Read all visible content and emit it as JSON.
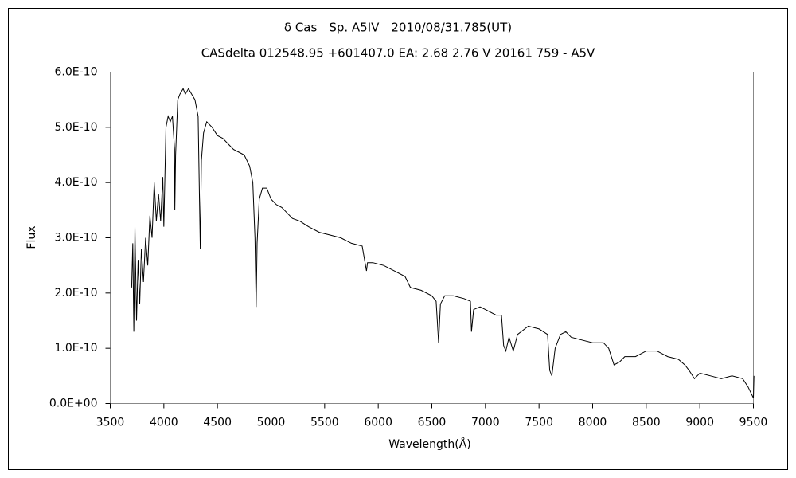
{
  "chart_data": {
    "type": "line",
    "title": "δ Cas　Sp. A5IV　2010/08/31.785(UT)",
    "subtitle": "CASdelta 012548.95 +601407.0 EA: 2.68 2.76 V 20161 759 - A5V",
    "xlabel": "Wavelength(Å)",
    "ylabel": "Flux",
    "xlim": [
      3500,
      9500
    ],
    "ylim": [
      0,
      6e-10
    ],
    "xticks": [
      3500,
      4000,
      4500,
      5000,
      5500,
      6000,
      6500,
      7000,
      7500,
      8000,
      8500,
      9000,
      9500
    ],
    "yticks": [
      {
        "value": 0,
        "label": "0.0E+00"
      },
      {
        "value": 1e-10,
        "label": "1.0E-10"
      },
      {
        "value": 2e-10,
        "label": "2.0E-10"
      },
      {
        "value": 3e-10,
        "label": "3.0E-10"
      },
      {
        "value": 4e-10,
        "label": "4.0E-10"
      },
      {
        "value": 5e-10,
        "label": "5.0E-10"
      },
      {
        "value": 6e-10,
        "label": "6.0E-10"
      }
    ],
    "grid": false,
    "color": "#000000",
    "x": [
      3700,
      3710,
      3720,
      3730,
      3745,
      3760,
      3775,
      3790,
      3810,
      3830,
      3850,
      3870,
      3890,
      3910,
      3930,
      3950,
      3970,
      3990,
      4000,
      4020,
      4040,
      4060,
      4080,
      4100,
      4102,
      4110,
      4130,
      4150,
      4180,
      4200,
      4230,
      4260,
      4290,
      4320,
      4340,
      4350,
      4370,
      4400,
      4450,
      4500,
      4550,
      4600,
      4650,
      4700,
      4750,
      4800,
      4830,
      4850,
      4861,
      4870,
      4890,
      4920,
      4960,
      5000,
      5050,
      5100,
      5150,
      5200,
      5270,
      5350,
      5450,
      5550,
      5650,
      5750,
      5850,
      5890,
      5900,
      5950,
      6050,
      6150,
      6250,
      6300,
      6400,
      6500,
      6540,
      6563,
      6580,
      6620,
      6700,
      6800,
      6860,
      6870,
      6890,
      6950,
      7000,
      7100,
      7150,
      7170,
      7190,
      7220,
      7260,
      7300,
      7400,
      7500,
      7580,
      7600,
      7620,
      7650,
      7700,
      7750,
      7800,
      7900,
      8000,
      8100,
      8150,
      8200,
      8250,
      8300,
      8400,
      8500,
      8600,
      8700,
      8800,
      8860,
      8900,
      8950,
      9000,
      9100,
      9200,
      9300,
      9400,
      9450,
      9500,
      9505
    ],
    "values": [
      2.1e-10,
      2.9e-10,
      1.3e-10,
      3.2e-10,
      1.5e-10,
      2.6e-10,
      1.8e-10,
      2.8e-10,
      2.2e-10,
      3e-10,
      2.5e-10,
      3.4e-10,
      3e-10,
      4e-10,
      3.3e-10,
      3.8e-10,
      3.3e-10,
      4.1e-10,
      3.2e-10,
      5e-10,
      5.2e-10,
      5.1e-10,
      5.2e-10,
      4.6e-10,
      3.5e-10,
      4.5e-10,
      5.5e-10,
      5.6e-10,
      5.7e-10,
      5.6e-10,
      5.7e-10,
      5.6e-10,
      5.5e-10,
      5.2e-10,
      2.8e-10,
      4.4e-10,
      4.9e-10,
      5.1e-10,
      5e-10,
      4.85e-10,
      4.8e-10,
      4.7e-10,
      4.6e-10,
      4.55e-10,
      4.5e-10,
      4.3e-10,
      4e-10,
      3e-10,
      1.75e-10,
      2.9e-10,
      3.7e-10,
      3.9e-10,
      3.9e-10,
      3.7e-10,
      3.6e-10,
      3.55e-10,
      3.45e-10,
      3.35e-10,
      3.3e-10,
      3.2e-10,
      3.1e-10,
      3.05e-10,
      3e-10,
      2.9e-10,
      2.85e-10,
      2.4e-10,
      2.55e-10,
      2.55e-10,
      2.5e-10,
      2.4e-10,
      2.3e-10,
      2.1e-10,
      2.05e-10,
      1.95e-10,
      1.85e-10,
      1.1e-10,
      1.8e-10,
      1.95e-10,
      1.95e-10,
      1.9e-10,
      1.85e-10,
      1.3e-10,
      1.7e-10,
      1.75e-10,
      1.7e-10,
      1.6e-10,
      1.6e-10,
      1.05e-10,
      9.5e-11,
      1.2e-10,
      9.5e-11,
      1.25e-10,
      1.4e-10,
      1.35e-10,
      1.25e-10,
      6e-11,
      5e-11,
      1e-10,
      1.25e-10,
      1.3e-10,
      1.2e-10,
      1.15e-10,
      1.1e-10,
      1.1e-10,
      1e-10,
      7e-11,
      7.5e-11,
      8.5e-11,
      8.5e-11,
      9.5e-11,
      9.5e-11,
      8.5e-11,
      8e-11,
      7e-11,
      6e-11,
      4.5e-11,
      5.5e-11,
      5e-11,
      4.5e-11,
      5e-11,
      4.5e-11,
      3e-11,
      1e-11,
      5e-11
    ]
  }
}
